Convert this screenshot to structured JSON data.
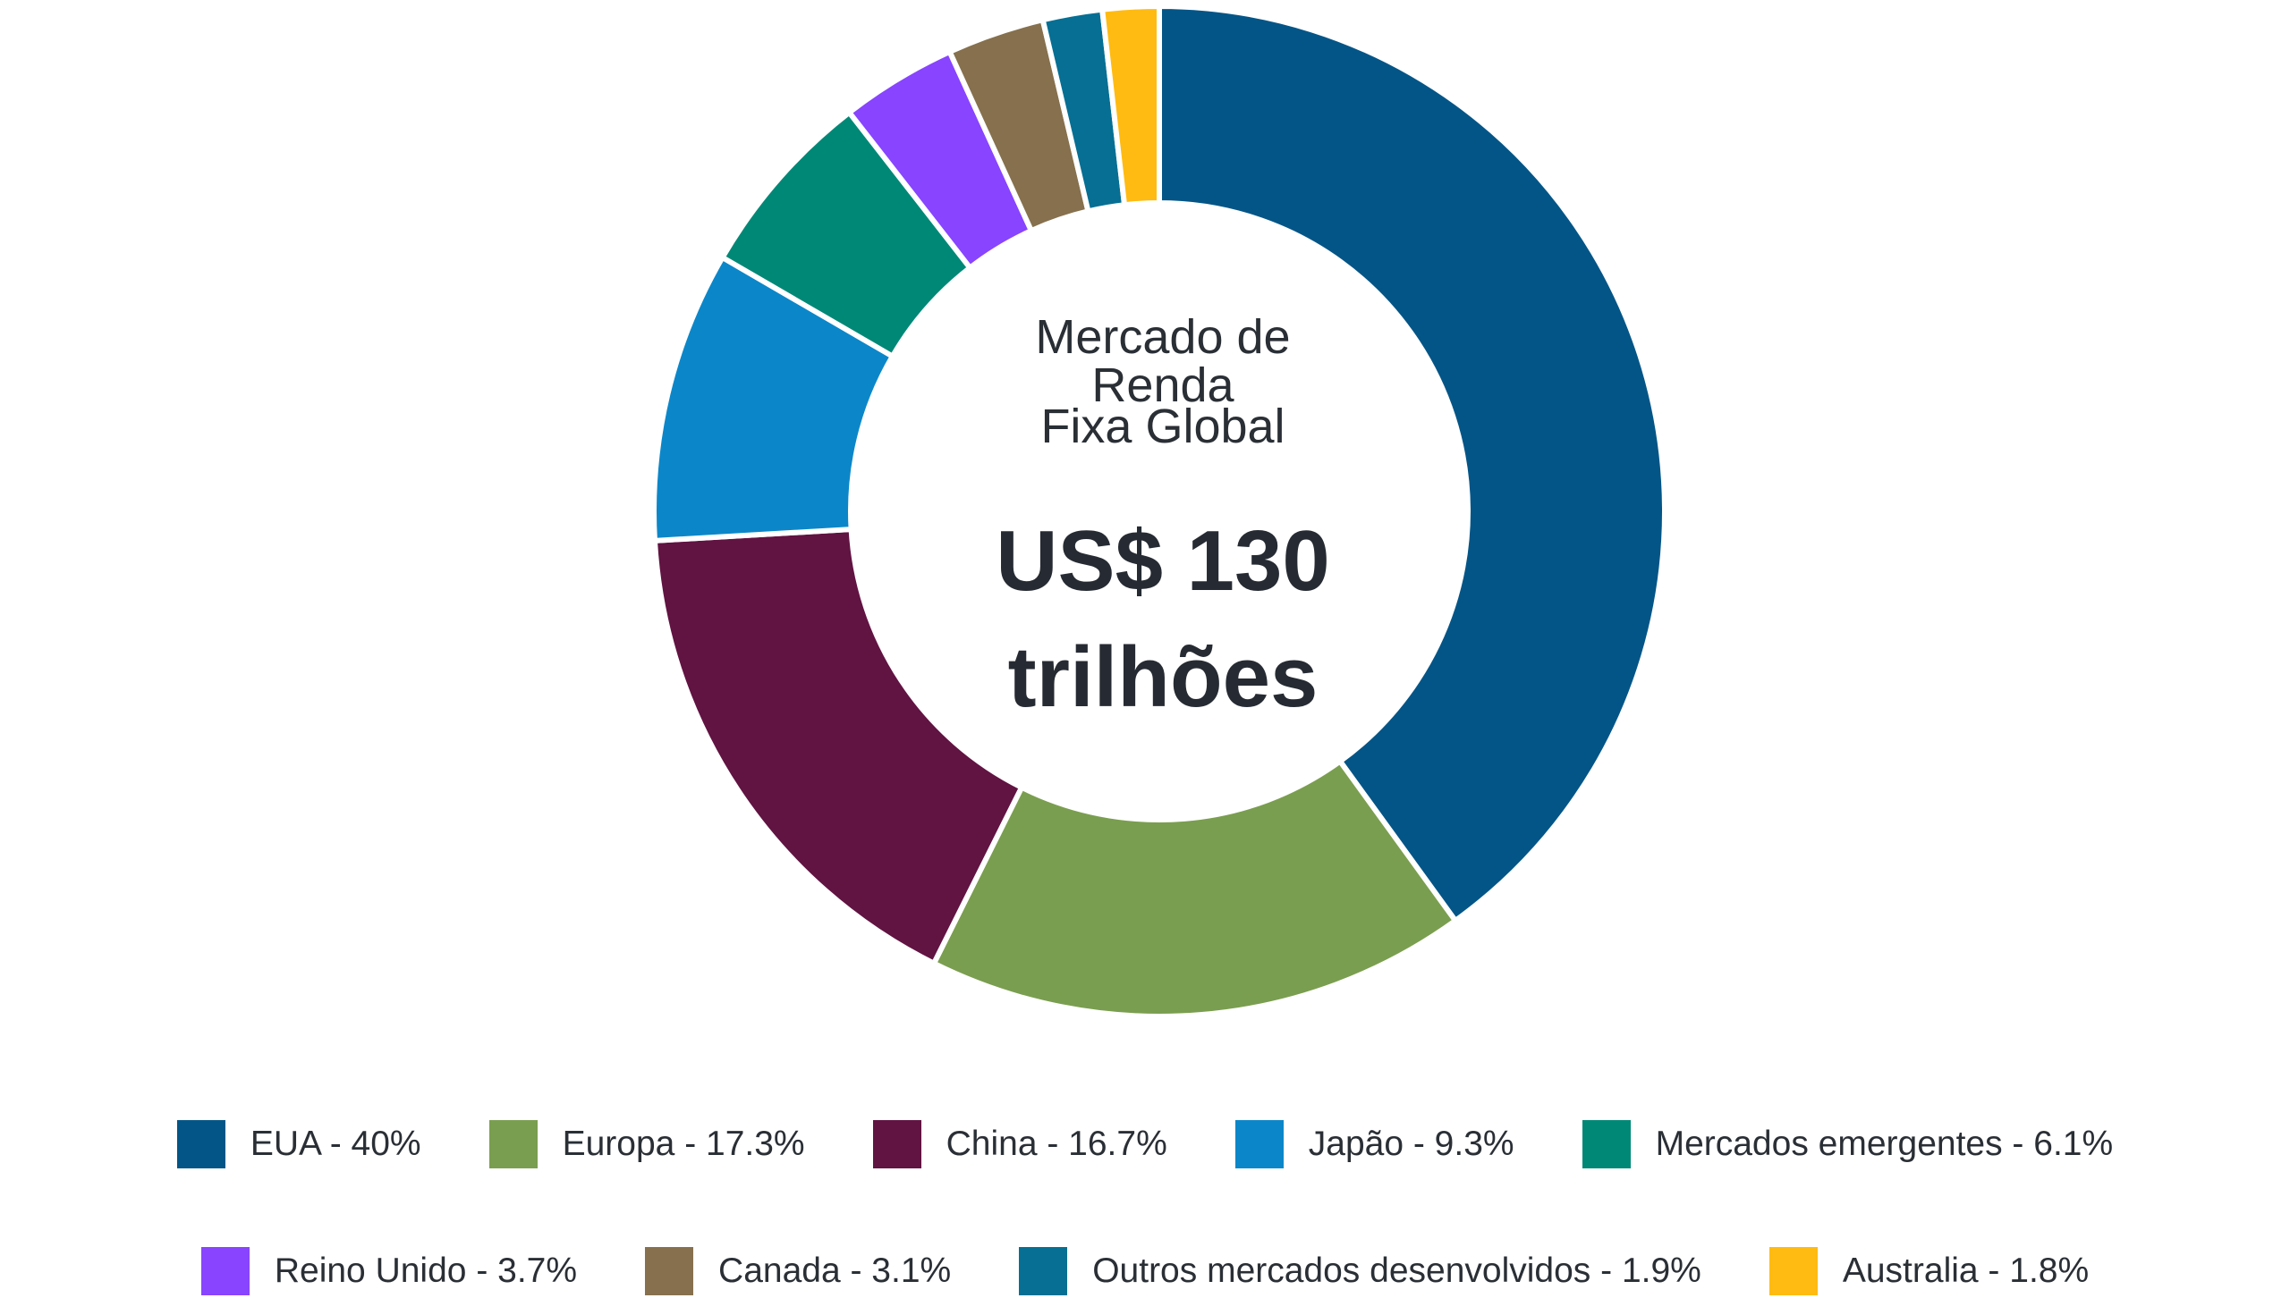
{
  "chart_data": {
    "type": "pie",
    "variant": "donut",
    "center": {
      "title_line1": "Mercado de Renda",
      "title_line2": "Fixa Global",
      "value_line1": "US$ 130",
      "value_line2": "trilhões"
    },
    "series": [
      {
        "name": "EUA",
        "value": 40,
        "label": "EUA - 40%",
        "color": "#045587"
      },
      {
        "name": "Europa",
        "value": 17.3,
        "label": "Europa - 17.3%",
        "color": "#7a9e4f"
      },
      {
        "name": "China",
        "value": 16.7,
        "label": "China - 16.7%",
        "color": "#611342"
      },
      {
        "name": "Japão",
        "value": 9.3,
        "label": "Japão - 9.3%",
        "color": "#0b87c9"
      },
      {
        "name": "Mercados emergentes",
        "value": 6.1,
        "label": "Mercados emergentes - 6.1%",
        "color": "#008877"
      },
      {
        "name": "Reino Unido",
        "value": 3.7,
        "label": "Reino Unido - 3.7%",
        "color": "#8844ff"
      },
      {
        "name": "Canada",
        "value": 3.1,
        "label": "Canada - 3.1%",
        "color": "#86704d"
      },
      {
        "name": "Outros mercados desenvolvidos",
        "value": 1.9,
        "label": "Outros mercados desenvolvidos - 1.9%",
        "color": "#066f93"
      },
      {
        "name": "Australia",
        "value": 1.8,
        "label": "Australia - 1.8%",
        "color": "#ffbb11"
      }
    ],
    "legend_position": "bottom",
    "start_angle": "12 o'clock",
    "direction": "clockwise"
  }
}
